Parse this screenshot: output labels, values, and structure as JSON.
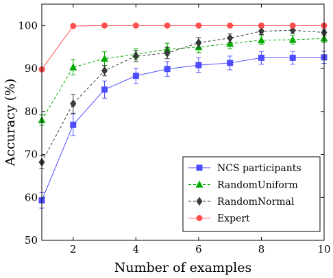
{
  "chart_data": {
    "type": "line",
    "xlabel": "Number of examples",
    "ylabel": "Accuracy (%)",
    "xlim": [
      1,
      10
    ],
    "ylim": [
      50,
      105
    ],
    "xticks": [
      2,
      4,
      6,
      8,
      10
    ],
    "yticks": [
      50,
      60,
      70,
      80,
      90,
      100
    ],
    "grid": false,
    "legend_position": "bottom-right",
    "x": [
      1,
      2,
      3,
      4,
      5,
      6,
      7,
      8,
      9,
      10
    ],
    "series": [
      {
        "name": "NCS participants",
        "color": "#4d4dff",
        "marker": "square",
        "dash": "solid",
        "values": [
          59.3,
          76.9,
          85.1,
          88.3,
          89.9,
          90.8,
          91.3,
          92.5,
          92.5,
          92.6
        ],
        "errors": [
          1.8,
          2.5,
          2.0,
          1.8,
          1.7,
          1.7,
          1.6,
          1.5,
          1.5,
          1.4
        ]
      },
      {
        "name": "RandomUniform",
        "color": "#00aa00",
        "marker": "triangle",
        "dash": "dashed",
        "values": [
          78.0,
          90.3,
          92.3,
          93.3,
          94.5,
          95.0,
          95.8,
          96.6,
          96.7,
          97.0
        ],
        "errors": [
          1.2,
          1.8,
          1.6,
          1.3,
          1.4,
          1.3,
          1.2,
          1.0,
          1.0,
          1.0
        ]
      },
      {
        "name": "RandomNormal",
        "color": "#3a3a3a",
        "marker": "diamond",
        "dash": "dashed",
        "values": [
          68.2,
          81.8,
          89.5,
          92.9,
          93.6,
          96.0,
          97.1,
          98.7,
          98.9,
          98.4
        ],
        "errors": [
          1.5,
          2.2,
          1.2,
          1.3,
          1.3,
          1.2,
          1.0,
          0.8,
          0.7,
          0.8
        ]
      },
      {
        "name": "Expert",
        "color": "#ff4d4d",
        "marker": "circle",
        "dash": "solid",
        "values": [
          89.8,
          99.9,
          100.0,
          100.0,
          100.0,
          100.0,
          100.0,
          100.0,
          100.0,
          100.0
        ],
        "errors": [
          0,
          0,
          0,
          0,
          0,
          0,
          0,
          0,
          0,
          0
        ]
      }
    ]
  }
}
